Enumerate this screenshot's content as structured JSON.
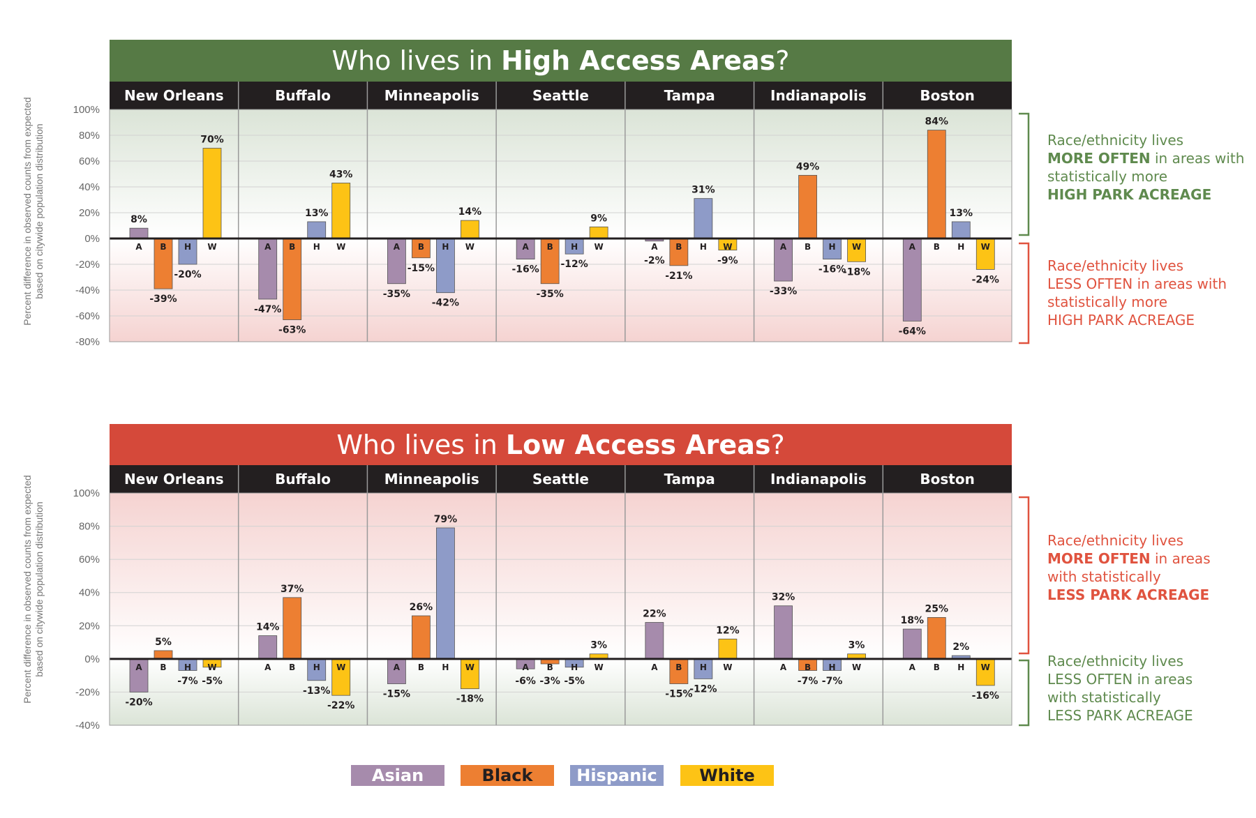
{
  "chart_data": [
    {
      "type": "bar",
      "title": "Who lives in High Access Areas?",
      "title_regular": "Who lives in ",
      "title_bold": "High Access Areas",
      "title_end": "?",
      "header_color": "#567a45",
      "ylabel": [
        "Percent difference in observed counts from expected",
        "based on citywide population distribution"
      ],
      "ylim": [
        -80,
        100
      ],
      "yticks": [
        100,
        80,
        60,
        40,
        20,
        0,
        -20,
        -40,
        -60,
        -80
      ],
      "ytick_labels": [
        "100%",
        "80%",
        "60%",
        "40%",
        "20%",
        "0%",
        "-20%",
        "-40%",
        "-60%",
        "-80%"
      ],
      "categories": [
        "New Orleans",
        "Buffalo",
        "Minneapolis",
        "Seattle",
        "Tampa",
        "Indianapolis",
        "Boston"
      ],
      "series": [
        {
          "name": "Asian",
          "abbr": "A",
          "values": [
            8,
            -47,
            -35,
            -16,
            -2,
            -33,
            -64
          ],
          "labels": [
            "8%",
            "-47%",
            "-35%",
            "-16%",
            "-2%",
            "-33%",
            "-64%"
          ]
        },
        {
          "name": "Black",
          "abbr": "B",
          "values": [
            -39,
            -63,
            -15,
            -35,
            -21,
            49,
            84
          ],
          "labels": [
            "-39%",
            "-63%",
            "-15%",
            "-35%",
            "-21%",
            "49%",
            "84%"
          ]
        },
        {
          "name": "Hispanic",
          "abbr": "H",
          "values": [
            -20,
            13,
            -42,
            -12,
            31,
            -16,
            13
          ],
          "labels": [
            "-20%",
            "13%",
            "-42%",
            "-12%",
            "31%",
            "-16%",
            "13%"
          ]
        },
        {
          "name": "White",
          "abbr": "W",
          "values": [
            70,
            43,
            14,
            9,
            -9,
            -18,
            -24
          ],
          "labels": [
            "70%",
            "43%",
            "14%",
            "9%",
            "-9%",
            "-18%",
            "-24%"
          ]
        }
      ],
      "annotation_upper": [
        {
          "text": "Race/ethnicity lives",
          "bold": false
        },
        {
          "text": "MORE OFTEN",
          "bold": true,
          "rest": " in areas with"
        },
        {
          "text": "statistically more",
          "bold": false
        },
        {
          "text": "HIGH PARK ACREAGE",
          "bold": true
        }
      ],
      "annotation_lower": [
        {
          "text": "Race/ethnicity lives",
          "bold": false
        },
        {
          "text": "LESS OFTEN in areas with",
          "bold": false
        },
        {
          "text": "statistically more",
          "bold": false
        },
        {
          "text": "HIGH PARK ACREAGE",
          "bold": false
        }
      ]
    },
    {
      "type": "bar",
      "title": "Who lives in Low Access Areas?",
      "title_regular": "Who lives in ",
      "title_bold": "Low Access Areas",
      "title_end": "?",
      "header_color": "#d5493a",
      "ylabel": [
        "Percent difference in observed counts from expected",
        "based on citywide population distribution"
      ],
      "ylim": [
        -40,
        100
      ],
      "yticks": [
        100,
        80,
        60,
        40,
        20,
        0,
        -20,
        -40
      ],
      "ytick_labels": [
        "100%",
        "80%",
        "60%",
        "40%",
        "20%",
        "0%",
        "-20%",
        "-40%"
      ],
      "categories": [
        "New Orleans",
        "Buffalo",
        "Minneapolis",
        "Seattle",
        "Tampa",
        "Indianapolis",
        "Boston"
      ],
      "series": [
        {
          "name": "Asian",
          "abbr": "A",
          "values": [
            -20,
            14,
            -15,
            -6,
            22,
            32,
            18
          ],
          "labels": [
            "-20%",
            "14%",
            "-15%",
            "-6%",
            "22%",
            "32%",
            "18%"
          ]
        },
        {
          "name": "Black",
          "abbr": "B",
          "values": [
            5,
            37,
            26,
            -3,
            -15,
            -7,
            25
          ],
          "labels": [
            "5%",
            "37%",
            "26%",
            "-3%",
            "-15%",
            "-7%",
            "25%"
          ]
        },
        {
          "name": "Hispanic",
          "abbr": "H",
          "values": [
            -7,
            -13,
            79,
            -5,
            -12,
            -7,
            2
          ],
          "labels": [
            "-7%",
            "-13%",
            "79%",
            "-5%",
            "-12%",
            "-7%",
            "2%"
          ]
        },
        {
          "name": "White",
          "abbr": "W",
          "values": [
            -5,
            -22,
            -18,
            3,
            12,
            3,
            -16
          ],
          "labels": [
            "-5%",
            "-22%",
            "-18%",
            "3%",
            "12%",
            "3%",
            "-16%"
          ]
        }
      ],
      "annotation_upper": [
        {
          "text": "Race/ethnicity lives",
          "bold": false
        },
        {
          "text": "MORE OFTEN",
          "bold": true,
          "rest": " in areas"
        },
        {
          "text": "with statistically",
          "bold": false
        },
        {
          "text": "LESS PARK ACREAGE",
          "bold": true
        }
      ],
      "annotation_lower": [
        {
          "text": "Race/ethnicity lives",
          "bold": false
        },
        {
          "text": "LESS OFTEN in areas",
          "bold": false
        },
        {
          "text": "with statistically",
          "bold": false
        },
        {
          "text": "LESS PARK ACREAGE",
          "bold": false
        }
      ]
    }
  ],
  "legend": [
    {
      "name": "Asian",
      "color": "#a68bac"
    },
    {
      "name": "Black",
      "color": "#ed7f32"
    },
    {
      "name": "Hispanic",
      "color": "#8e9bc8"
    },
    {
      "name": "White",
      "color": "#fdc315"
    }
  ],
  "colors": {
    "asian": "#a68bac",
    "black": "#ed7f32",
    "hispanic": "#8e9bc8",
    "white": "#fdc315",
    "green_text": "#5f8a4e",
    "red_text": "#e0533f",
    "city_header_bg": "#231f20"
  }
}
